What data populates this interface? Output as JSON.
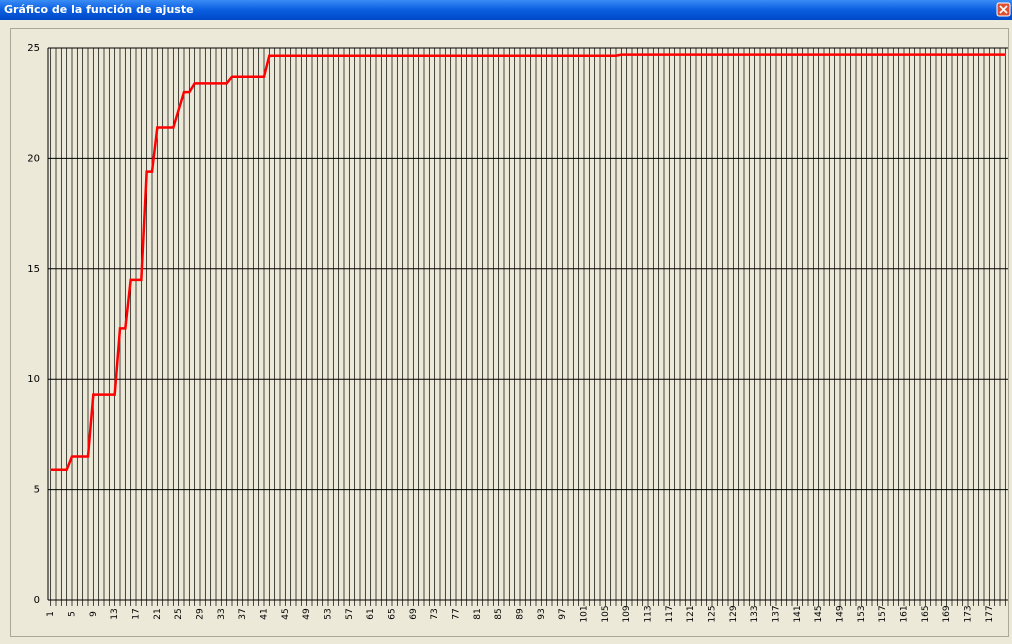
{
  "window": {
    "title": "Gráfico de la función de ajuste"
  },
  "chart_data": {
    "type": "line",
    "categories": [
      1,
      null,
      null,
      null,
      5,
      null,
      null,
      null,
      9,
      null,
      null,
      null,
      13,
      null,
      null,
      null,
      17,
      null,
      null,
      null,
      21,
      null,
      null,
      null,
      25,
      null,
      null,
      null,
      29,
      null,
      null,
      null,
      33,
      null,
      null,
      null,
      37,
      null,
      null,
      null,
      41,
      null,
      null,
      null,
      45,
      null,
      null,
      null,
      49,
      null,
      null,
      null,
      53,
      null,
      null,
      null,
      57,
      null,
      null,
      null,
      61,
      null,
      null,
      null,
      65,
      null,
      null,
      null,
      69,
      null,
      null,
      null,
      73,
      null,
      null,
      null,
      77,
      null,
      null,
      null,
      81,
      null,
      null,
      null,
      85,
      null,
      null,
      null,
      89,
      null,
      null,
      null,
      93,
      null,
      null,
      null,
      97,
      null,
      null,
      null,
      101,
      null,
      null,
      null,
      105,
      null,
      null,
      null,
      109,
      null,
      null,
      null,
      113,
      null,
      null,
      null,
      117,
      null,
      null,
      null,
      121,
      null,
      null,
      null,
      125,
      null,
      null,
      null,
      129,
      null,
      null,
      null,
      133,
      null,
      null,
      null,
      137,
      null,
      null,
      null,
      141,
      null,
      null,
      null,
      145,
      null,
      null,
      null,
      149,
      null,
      null,
      null,
      153,
      null,
      null,
      null,
      157,
      null,
      null,
      null,
      161,
      null,
      null,
      null,
      165,
      null,
      null,
      null,
      169,
      null,
      null,
      null,
      173,
      null,
      null,
      null,
      177,
      null,
      null,
      null
    ],
    "series": [
      {
        "color": "#ff0000",
        "values": [
          5.9,
          5.9,
          5.9,
          5.9,
          6.5,
          6.5,
          6.5,
          6.5,
          9.3,
          9.3,
          9.3,
          9.3,
          9.3,
          12.3,
          12.3,
          14.5,
          14.5,
          14.5,
          19.4,
          19.4,
          21.4,
          21.4,
          21.4,
          21.4,
          22.2,
          23,
          23,
          23.4,
          23.4,
          23.4,
          23.4,
          23.4,
          23.4,
          23.4,
          23.7,
          23.7,
          23.7,
          23.7,
          23.7,
          23.7,
          23.7,
          24.65,
          24.65,
          24.65,
          24.65,
          24.65,
          24.65,
          24.65,
          24.65,
          24.65,
          24.65,
          24.65,
          24.65,
          24.65,
          24.65,
          24.65,
          24.65,
          24.65,
          24.65,
          24.65,
          24.65,
          24.65,
          24.65,
          24.65,
          24.65,
          24.65,
          24.65,
          24.65,
          24.65,
          24.65,
          24.65,
          24.65,
          24.65,
          24.65,
          24.65,
          24.65,
          24.65,
          24.65,
          24.65,
          24.65,
          24.65,
          24.65,
          24.65,
          24.65,
          24.65,
          24.65,
          24.65,
          24.65,
          24.65,
          24.65,
          24.65,
          24.65,
          24.65,
          24.65,
          24.65,
          24.65,
          24.65,
          24.65,
          24.65,
          24.65,
          24.65,
          24.65,
          24.65,
          24.65,
          24.65,
          24.65,
          24.65,
          24.7,
          24.7,
          24.7,
          24.7,
          24.7,
          24.7,
          24.7,
          24.7,
          24.7,
          24.7,
          24.7,
          24.7,
          24.7,
          24.7,
          24.7,
          24.7,
          24.7,
          24.7,
          24.7,
          24.7,
          24.7,
          24.7,
          24.7,
          24.7,
          24.7,
          24.7,
          24.7,
          24.7,
          24.7,
          24.7,
          24.7,
          24.7,
          24.7,
          24.7,
          24.7,
          24.7,
          24.7,
          24.7,
          24.7,
          24.7,
          24.7,
          24.7,
          24.7,
          24.7,
          24.7,
          24.7,
          24.7,
          24.7,
          24.7,
          24.7,
          24.7,
          24.7,
          24.7,
          24.7,
          24.7,
          24.7,
          24.7,
          24.7,
          24.7,
          24.7,
          24.7,
          24.7,
          24.7,
          24.7,
          24.7,
          24.7,
          24.7,
          24.7,
          24.7,
          24.7,
          24.7,
          24.7,
          24.7
        ]
      }
    ],
    "ylim": [
      0,
      25
    ],
    "yticks": [
      0,
      5,
      10,
      15,
      20,
      25
    ],
    "grid": true
  }
}
